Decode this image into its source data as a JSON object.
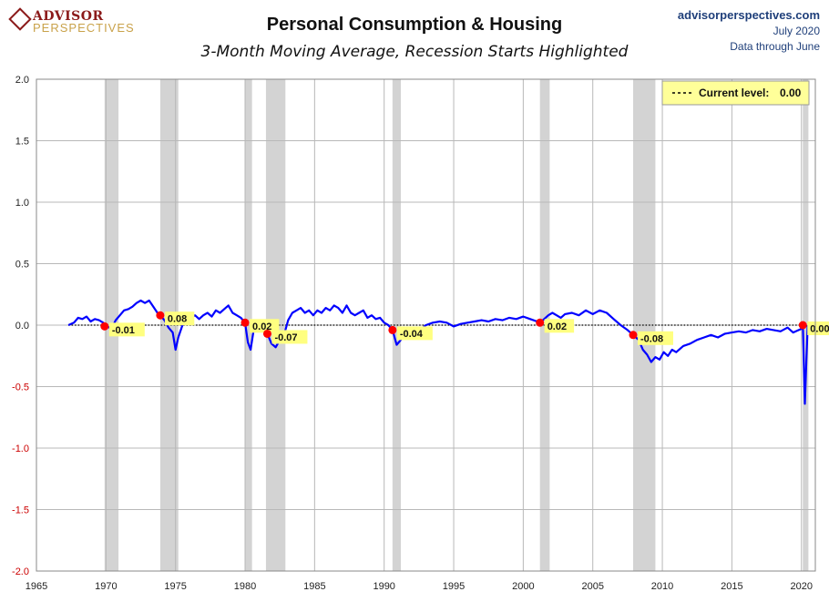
{
  "header": {
    "logo_main": "ADVISOR",
    "logo_sub": "PERSPECTIVES",
    "title": "Personal Consumption & Housing",
    "subtitle": "3-Month Moving Average, Recession Starts Highlighted",
    "source_site": "advisorperspectives.com",
    "source_date": "July 2020",
    "source_note": "Data through June"
  },
  "legend": {
    "label": "Current level:",
    "value": "0.00"
  },
  "colors": {
    "series": "#0000ff",
    "recession": "#d3d3d3",
    "marker": "#ff0000",
    "label_bg": "#ffff80",
    "negative_tick": "#cc0000"
  },
  "chart_data": {
    "type": "line",
    "title": "Personal Consumption & Housing",
    "subtitle": "3-Month Moving Average, Recession Starts Highlighted",
    "xlim": [
      1965,
      2021
    ],
    "ylim": [
      -2.0,
      2.0
    ],
    "x_ticks": [
      "1965",
      "1970",
      "1975",
      "1980",
      "1985",
      "1990",
      "1995",
      "2000",
      "2005",
      "2010",
      "2015",
      "2020"
    ],
    "y_ticks": [
      "2.0",
      "1.5",
      "1.0",
      "0.5",
      "0.0",
      "-0.5",
      "-1.0",
      "-1.5",
      "-2.0"
    ],
    "grid": true,
    "recessions": [
      [
        1969.9,
        1970.9
      ],
      [
        1973.9,
        1975.2
      ],
      [
        1980.0,
        1980.5
      ],
      [
        1981.5,
        1982.9
      ],
      [
        1990.6,
        1991.2
      ],
      [
        2001.2,
        2001.9
      ],
      [
        2007.9,
        2009.5
      ],
      [
        2020.1,
        2020.5
      ]
    ],
    "recession_starts": [
      {
        "x": 1969.9,
        "y": -0.01,
        "label": "-0.01"
      },
      {
        "x": 1973.9,
        "y": 0.08,
        "label": "0.08"
      },
      {
        "x": 1980.0,
        "y": 0.02,
        "label": "0.02"
      },
      {
        "x": 1981.6,
        "y": -0.07,
        "label": "-0.07"
      },
      {
        "x": 1990.6,
        "y": -0.04,
        "label": "-0.04"
      },
      {
        "x": 2001.2,
        "y": 0.02,
        "label": "0.02"
      },
      {
        "x": 2007.9,
        "y": -0.08,
        "label": "-0.08"
      },
      {
        "x": 2020.1,
        "y": 0.0,
        "label": "0.00"
      }
    ],
    "current_level": 0.0,
    "series": [
      {
        "x": [
          1967.3,
          1967.7,
          1968.0,
          1968.3,
          1968.6,
          1968.9,
          1969.2,
          1969.5,
          1969.8,
          1970.1,
          1970.4,
          1970.7,
          1971.0,
          1971.3,
          1971.6,
          1971.9,
          1972.2,
          1972.5,
          1972.8,
          1973.1,
          1973.4,
          1973.7,
          1973.9,
          1974.2,
          1974.5,
          1974.8,
          1975.0,
          1975.2,
          1975.5,
          1975.8,
          1976.1,
          1976.4,
          1976.7,
          1977.0,
          1977.3,
          1977.6,
          1977.9,
          1978.2,
          1978.5,
          1978.8,
          1979.1,
          1979.4,
          1979.7,
          1980.0,
          1980.2,
          1980.4,
          1980.7,
          1981.0,
          1981.3,
          1981.6,
          1981.9,
          1982.2,
          1982.5,
          1982.8,
          1983.1,
          1983.4,
          1983.7,
          1984.0,
          1984.3,
          1984.6,
          1984.9,
          1985.2,
          1985.5,
          1985.8,
          1986.1,
          1986.4,
          1986.7,
          1987.0,
          1987.3,
          1987.6,
          1987.9,
          1988.2,
          1988.5,
          1988.8,
          1989.1,
          1989.4,
          1989.7,
          1990.0,
          1990.3,
          1990.6,
          1990.9,
          1991.2,
          1991.5,
          1991.8,
          1992.1,
          1992.4,
          1992.7,
          1993.0,
          1993.5,
          1994.0,
          1994.5,
          1995.0,
          1995.5,
          1996.0,
          1996.5,
          1997.0,
          1997.5,
          1998.0,
          1998.5,
          1999.0,
          1999.5,
          2000.0,
          2000.5,
          2001.0,
          2001.2,
          2001.5,
          2001.8,
          2002.1,
          2002.4,
          2002.7,
          2003.0,
          2003.5,
          2004.0,
          2004.5,
          2005.0,
          2005.5,
          2006.0,
          2006.5,
          2007.0,
          2007.5,
          2007.9,
          2008.3,
          2008.6,
          2008.9,
          2009.2,
          2009.5,
          2009.8,
          2010.1,
          2010.4,
          2010.7,
          2011.0,
          2011.5,
          2012.0,
          2012.5,
          2013.0,
          2013.5,
          2014.0,
          2014.5,
          2015.0,
          2015.5,
          2016.0,
          2016.5,
          2017.0,
          2017.5,
          2018.0,
          2018.5,
          2019.0,
          2019.4,
          2019.8,
          2020.0,
          2020.1,
          2020.25,
          2020.35,
          2020.45
        ],
        "y": [
          0.0,
          0.02,
          0.06,
          0.05,
          0.07,
          0.03,
          0.05,
          0.04,
          0.02,
          -0.01,
          -0.03,
          0.04,
          0.08,
          0.12,
          0.13,
          0.15,
          0.18,
          0.2,
          0.18,
          0.2,
          0.15,
          0.1,
          0.08,
          0.04,
          -0.02,
          -0.06,
          -0.2,
          -0.1,
          0.0,
          0.03,
          0.06,
          0.08,
          0.05,
          0.08,
          0.1,
          0.07,
          0.12,
          0.1,
          0.13,
          0.16,
          0.1,
          0.08,
          0.06,
          0.02,
          -0.14,
          -0.2,
          0.02,
          0.04,
          0.0,
          -0.07,
          -0.15,
          -0.18,
          -0.12,
          -0.08,
          0.04,
          0.1,
          0.12,
          0.14,
          0.1,
          0.12,
          0.08,
          0.12,
          0.1,
          0.14,
          0.12,
          0.16,
          0.14,
          0.1,
          0.16,
          0.1,
          0.08,
          0.1,
          0.12,
          0.06,
          0.08,
          0.05,
          0.06,
          0.02,
          0.0,
          -0.04,
          -0.16,
          -0.12,
          -0.08,
          -0.06,
          -0.04,
          -0.02,
          -0.03,
          0.0,
          0.02,
          0.03,
          0.02,
          -0.01,
          0.01,
          0.02,
          0.03,
          0.04,
          0.03,
          0.05,
          0.04,
          0.06,
          0.05,
          0.07,
          0.05,
          0.03,
          0.02,
          0.05,
          0.08,
          0.1,
          0.08,
          0.06,
          0.09,
          0.1,
          0.08,
          0.12,
          0.09,
          0.12,
          0.1,
          0.05,
          0.0,
          -0.04,
          -0.08,
          -0.12,
          -0.2,
          -0.24,
          -0.3,
          -0.26,
          -0.28,
          -0.22,
          -0.25,
          -0.2,
          -0.22,
          -0.17,
          -0.15,
          -0.12,
          -0.1,
          -0.08,
          -0.1,
          -0.07,
          -0.06,
          -0.05,
          -0.06,
          -0.04,
          -0.05,
          -0.03,
          -0.04,
          -0.05,
          -0.02,
          -0.06,
          -0.04,
          -0.03,
          0.0,
          -0.64,
          -0.3,
          0.0
        ]
      }
    ]
  }
}
